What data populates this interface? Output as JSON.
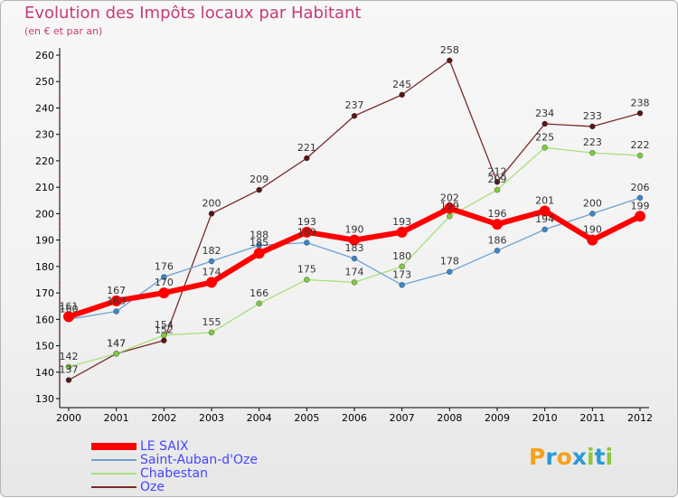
{
  "title": "Evolution des Impôts locaux par Habitant",
  "subtitle": "(en € et par an)",
  "logo": {
    "text": "Proxiti",
    "letters": [
      "P",
      "r",
      "o",
      "x",
      "i",
      "t",
      "i"
    ],
    "colors": [
      "#f7a21b",
      "#2a9ad6",
      "#f7a21b",
      "#2a9ad6",
      "#8dc63f",
      "#2a9ad6",
      "#8dc63f"
    ]
  },
  "chart_data": {
    "type": "line",
    "title": "Evolution des Impôts locaux par Habitant",
    "xlabel": "",
    "ylabel": "",
    "ylim": [
      130,
      260
    ],
    "yticks": [
      130,
      140,
      150,
      160,
      170,
      180,
      190,
      200,
      210,
      220,
      230,
      240,
      250,
      260
    ],
    "categories": [
      "2000",
      "2001",
      "2002",
      "2003",
      "2004",
      "2005",
      "2006",
      "2007",
      "2008",
      "2009",
      "2010",
      "2011",
      "2012"
    ],
    "series": [
      {
        "name": "LE SAIX",
        "color": "#ff0000",
        "marker": "#ff0000",
        "width": 6,
        "r": 6,
        "values": [
          161,
          167,
          170,
          174,
          185,
          193,
          190,
          193,
          202,
          196,
          201,
          190,
          199
        ]
      },
      {
        "name": "Saint-Auban-d'Oze",
        "color": "#6fa1d1",
        "marker": "#3a86c8",
        "width": 1.3,
        "r": 3,
        "values": [
          160,
          163,
          176,
          182,
          188,
          189,
          183,
          173,
          178,
          186,
          194,
          200,
          206
        ]
      },
      {
        "name": "Chabestan",
        "color": "#a8e07a",
        "marker": "#7ccc3f",
        "width": 1.3,
        "r": 3,
        "values": [
          142,
          147,
          154,
          155,
          166,
          175,
          174,
          180,
          199,
          209,
          225,
          223,
          222
        ]
      },
      {
        "name": "Oze",
        "color": "#7a2a2a",
        "marker": "#5a1515",
        "width": 1.3,
        "r": 3,
        "values": [
          137,
          147,
          152,
          200,
          209,
          221,
          237,
          245,
          258,
          212,
          234,
          233,
          238
        ]
      }
    ],
    "data_labels": [
      {
        "series": 0,
        "labels": [
          "161",
          "167",
          "170",
          "174",
          "185",
          "193",
          "190",
          "193",
          "202",
          "196",
          "201",
          "190",
          "199"
        ]
      },
      {
        "series": 1,
        "labels": [
          "160",
          "163",
          "176",
          "182",
          "188",
          "189",
          "183",
          "173",
          "178",
          "186",
          "194",
          "200",
          "206"
        ]
      },
      {
        "series": 2,
        "labels": [
          "142",
          "147",
          "154",
          "155",
          "166",
          "175",
          "174",
          "180",
          "199",
          "209",
          "225",
          "223",
          "222"
        ]
      },
      {
        "series": 3,
        "labels": [
          "137",
          "147",
          "152",
          "200",
          "209",
          "221",
          "237",
          "245",
          "258",
          "212",
          "234",
          "233",
          "238"
        ]
      }
    ],
    "grid": false,
    "legend": "bottom-left"
  }
}
